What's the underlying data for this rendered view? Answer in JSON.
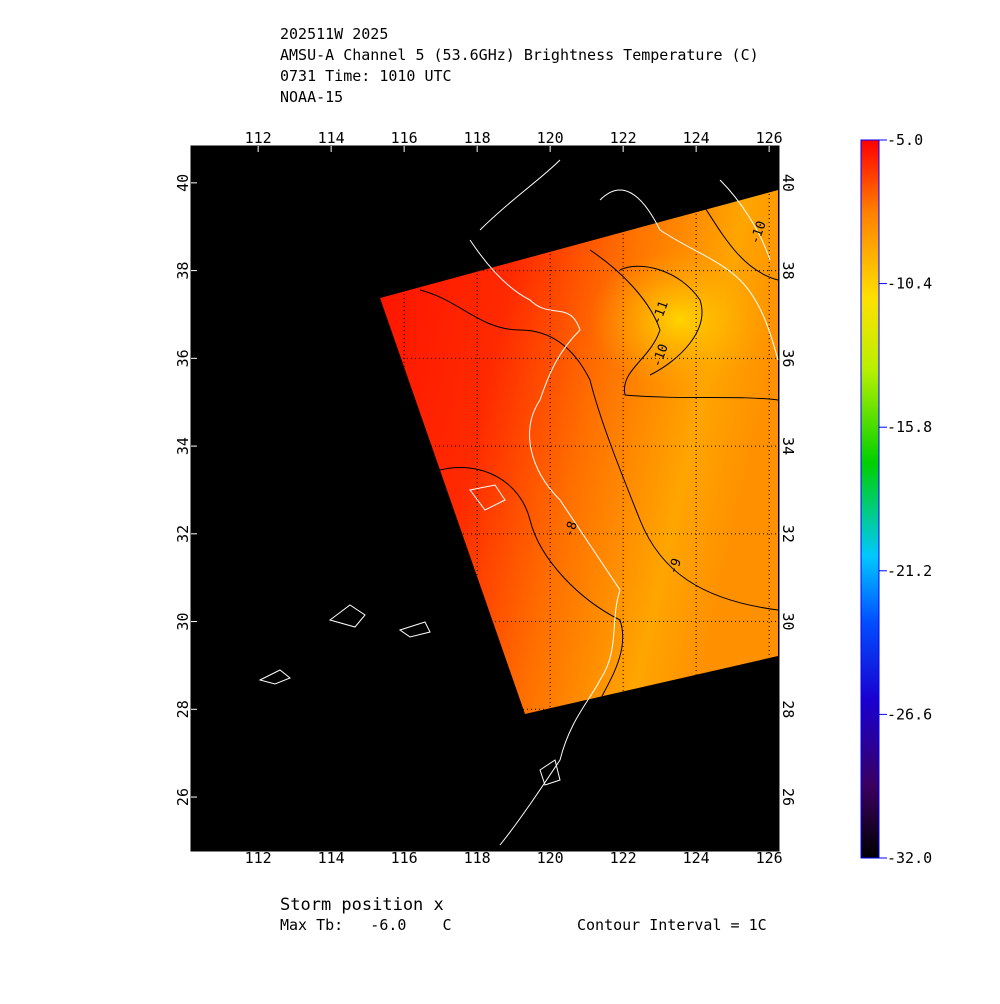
{
  "header": {
    "lines": [
      "202511W 2025",
      "AMSU-A Channel 5 (53.6GHz) Brightness Temperature (C)",
      "0731 Time: 1010 UTC",
      "NOAA-15"
    ]
  },
  "map": {
    "xlim": [
      110.16,
      126.27
    ],
    "ylim": [
      24.77,
      40.84
    ],
    "xticks": [
      112,
      114,
      116,
      118,
      120,
      122,
      124,
      126
    ],
    "yticks": [
      26,
      28,
      30,
      32,
      34,
      36,
      38,
      40
    ],
    "contour_labels": [
      "-10",
      "-11",
      "-10",
      "-9",
      "-8"
    ]
  },
  "colorbar": {
    "ylim": [
      -32,
      -5
    ],
    "ticks": [
      {
        "value": -5,
        "label": "-5.0"
      },
      {
        "value": -10.4,
        "label": "-10.4"
      },
      {
        "value": -15.8,
        "label": "-15.8"
      },
      {
        "value": -21.2,
        "label": "-21.2"
      },
      {
        "value": -26.6,
        "label": "-26.6"
      },
      {
        "value": -32,
        "label": "-32.0"
      }
    ]
  },
  "footer": {
    "storm": "Storm position x",
    "max_tb": "Max Tb:   -6.0    C",
    "interval": "Contour Interval = 1C"
  }
}
